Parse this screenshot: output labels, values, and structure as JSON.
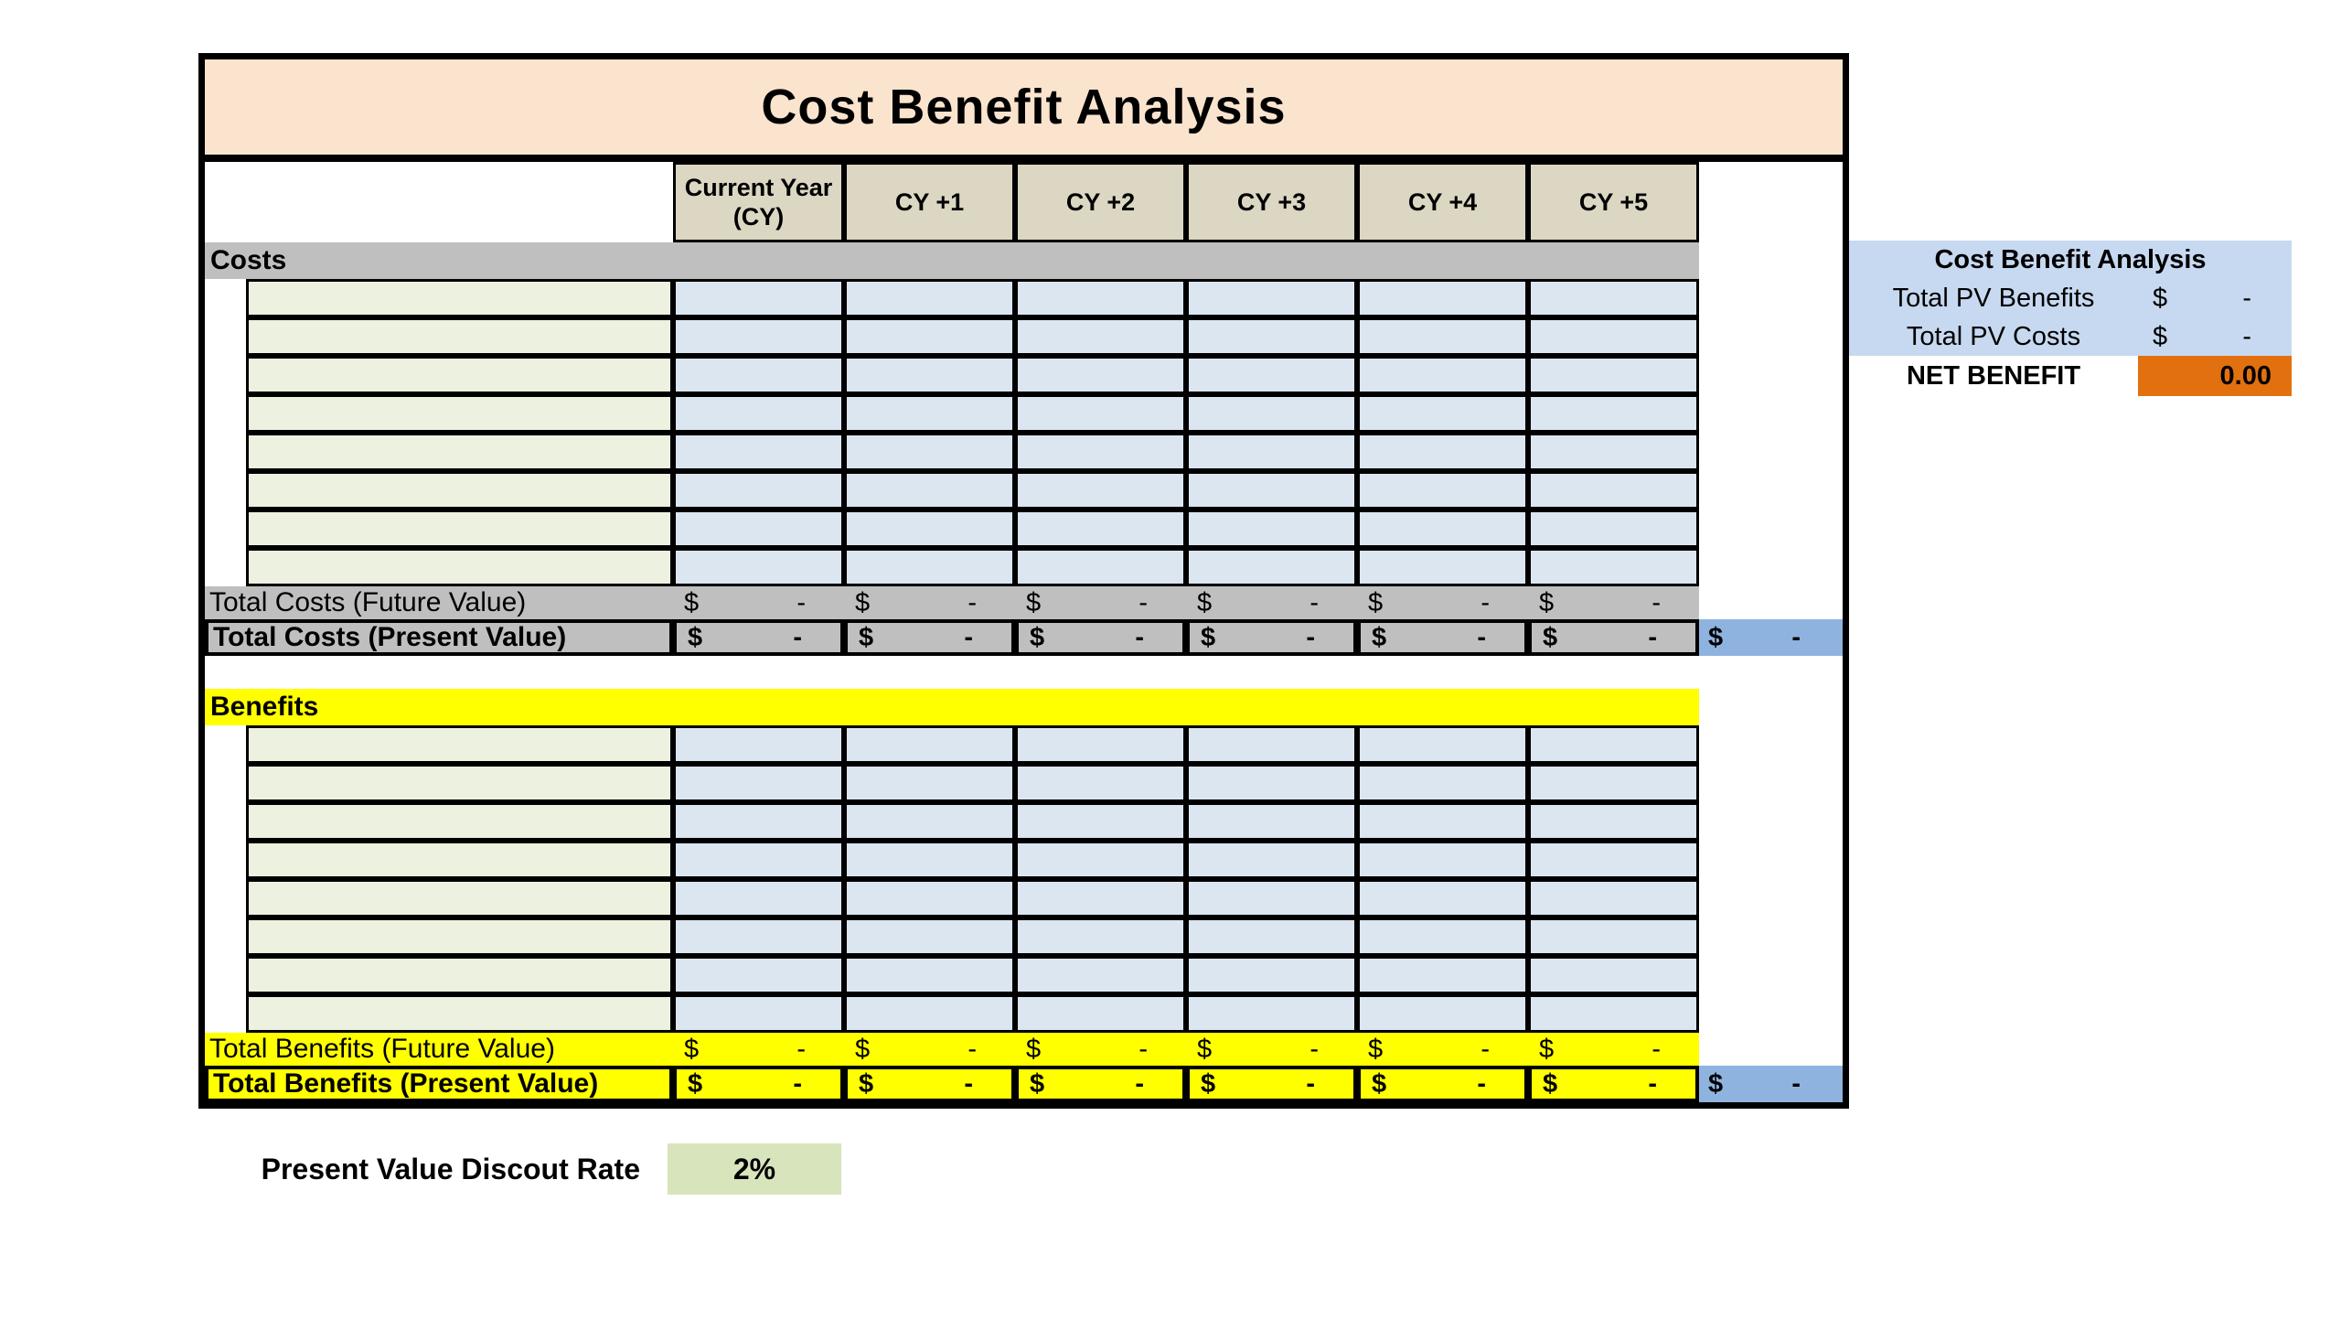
{
  "title": "Cost Benefit Analysis",
  "table": {
    "columns": [
      "Current Year (CY)",
      "CY +1",
      "CY +2",
      "CY +3",
      "CY +4",
      "CY +5"
    ],
    "currency_symbol": "$",
    "empty_value": "-",
    "costs": {
      "header": "Costs",
      "item_row_count": 8,
      "total_future_label": "Total Costs (Future Value)",
      "total_present_label": "Total Costs (Present Value)"
    },
    "benefits": {
      "header": "Benefits",
      "item_row_count": 8,
      "total_future_label": "Total Benefits (Future Value)",
      "total_present_label": "Total Benefits (Present Value)"
    }
  },
  "summary": {
    "title": "Cost Benefit Analysis",
    "rows": [
      {
        "label": "Total PV Benefits",
        "currency": "$",
        "value": "-"
      },
      {
        "label": "Total PV Costs",
        "currency": "$",
        "value": "-"
      }
    ],
    "net_label": "NET BENEFIT",
    "net_value": "0.00"
  },
  "discount": {
    "label": "Present Value Discout Rate",
    "value": "2%"
  },
  "colors": {
    "title_bg": "#FBE4CE",
    "column_header_bg": "#DBD7C3",
    "item_label_bg": "#EDF1DF",
    "item_value_bg": "#DCE6F1",
    "costs_section_bg": "#BFBFBF",
    "benefits_section_bg": "#FFFF00",
    "grand_total_bg": "#8FB3DF",
    "summary_box_bg": "#C7D9F0",
    "net_benefit_bg": "#E2700F",
    "discount_cell_bg": "#D8E4BC"
  }
}
